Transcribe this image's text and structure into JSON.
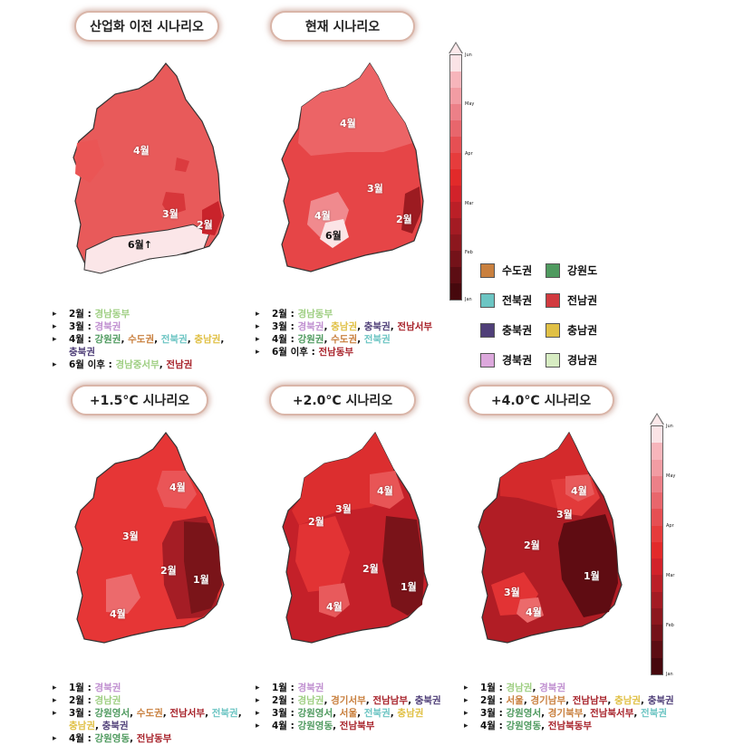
{
  "panels": [
    {
      "title": "산업화 이전 시나리오",
      "map_labels": [
        "4월",
        "3월",
        "2월",
        "6월↑"
      ],
      "bullets": [
        {
          "month": "2월 :",
          "regions": [
            {
              "name": "경남동부",
              "cls": "c-gyeongnam"
            }
          ]
        },
        {
          "month": "3월 :",
          "regions": [
            {
              "name": "경북권",
              "cls": "c-gyeongbuk"
            }
          ]
        },
        {
          "month": "4월 :",
          "regions": [
            {
              "name": "강원권",
              "cls": "c-gangwon"
            },
            {
              "name": "수도권",
              "cls": "c-sudo"
            },
            {
              "name": "전북권",
              "cls": "c-jeonbuk"
            },
            {
              "name": "충남권",
              "cls": "c-chungnam"
            },
            {
              "name": "충북권",
              "cls": "c-chungbuk"
            }
          ]
        },
        {
          "month": "6월 이후 :",
          "regions": [
            {
              "name": "경남중서부",
              "cls": "c-gyeongnam"
            },
            {
              "name": "전남권",
              "cls": "c-jeonnam"
            }
          ]
        }
      ]
    },
    {
      "title": "현재 시나리오",
      "map_labels": [
        "4월",
        "3월",
        "4월",
        "6월",
        "2월"
      ],
      "bullets": [
        {
          "month": "2월 :",
          "regions": [
            {
              "name": "경남동부",
              "cls": "c-gyeongnam"
            }
          ]
        },
        {
          "month": "3월 :",
          "regions": [
            {
              "name": "경북권",
              "cls": "c-gyeongbuk"
            },
            {
              "name": "충남권",
              "cls": "c-chungnam"
            },
            {
              "name": "충북권",
              "cls": "c-chungbuk"
            },
            {
              "name": "전남서부",
              "cls": "c-jeonnam"
            }
          ]
        },
        {
          "month": "4월 :",
          "regions": [
            {
              "name": "강원권",
              "cls": "c-gangwon"
            },
            {
              "name": "수도권",
              "cls": "c-sudo"
            },
            {
              "name": "전북권",
              "cls": "c-jeonbuk"
            }
          ]
        },
        {
          "month": "6월 이후 :",
          "regions": [
            {
              "name": "전남동부",
              "cls": "c-jeonnam"
            }
          ]
        }
      ]
    },
    {
      "title": "+1.5°C 시나리오",
      "map_labels": [
        "4월",
        "3월",
        "2월",
        "1월",
        "4월"
      ],
      "bullets": [
        {
          "month": "1월 :",
          "regions": [
            {
              "name": "경북권",
              "cls": "c-gyeongbuk"
            }
          ]
        },
        {
          "month": "2월 :",
          "regions": [
            {
              "name": "경남권",
              "cls": "c-gyeongnam"
            }
          ]
        },
        {
          "month": "3월 :",
          "regions": [
            {
              "name": "강원영서",
              "cls": "c-gangwon"
            },
            {
              "name": "수도권",
              "cls": "c-sudo"
            },
            {
              "name": "전남서부",
              "cls": "c-jeonnam"
            },
            {
              "name": "전북권",
              "cls": "c-jeonbuk"
            },
            {
              "name": "충남권",
              "cls": "c-chungnam"
            },
            {
              "name": "충북권",
              "cls": "c-chungbuk"
            }
          ]
        },
        {
          "month": "4월 :",
          "regions": [
            {
              "name": "강원영동",
              "cls": "c-gangwon"
            },
            {
              "name": "전남동부",
              "cls": "c-jeonnam"
            }
          ]
        }
      ]
    },
    {
      "title": "+2.0°C 시나리오",
      "map_labels": [
        "4월",
        "3월",
        "2월",
        "2월",
        "1월",
        "4월"
      ],
      "bullets": [
        {
          "month": "1월 :",
          "regions": [
            {
              "name": "경북권",
              "cls": "c-gyeongbuk"
            }
          ]
        },
        {
          "month": "2월 :",
          "regions": [
            {
              "name": "경남권",
              "cls": "c-gyeongnam"
            },
            {
              "name": "경기서부",
              "cls": "c-sudo"
            },
            {
              "name": "전남남부",
              "cls": "c-jeonnam"
            },
            {
              "name": "충북권",
              "cls": "c-chungbuk"
            }
          ]
        },
        {
          "month": "3월 :",
          "regions": [
            {
              "name": "강원영서",
              "cls": "c-gangwon"
            },
            {
              "name": "서울",
              "cls": "c-sudo"
            },
            {
              "name": "전북권",
              "cls": "c-jeonbuk"
            },
            {
              "name": "충남권",
              "cls": "c-chungnam"
            }
          ]
        },
        {
          "month": "4월 :",
          "regions": [
            {
              "name": "강원영동",
              "cls": "c-gangwon"
            },
            {
              "name": "전남북부",
              "cls": "c-jeonnam"
            }
          ]
        }
      ]
    },
    {
      "title": "+4.0°C 시나리오",
      "map_labels": [
        "4월",
        "3월",
        "2월",
        "1월",
        "3월",
        "4월"
      ],
      "bullets": [
        {
          "month": "1월 :",
          "regions": [
            {
              "name": "경남권",
              "cls": "c-gyeongnam"
            },
            {
              "name": "경북권",
              "cls": "c-gyeongbuk"
            }
          ]
        },
        {
          "month": "2월 :",
          "regions": [
            {
              "name": "서울",
              "cls": "c-sudo"
            },
            {
              "name": "경기남부",
              "cls": "c-sudo"
            },
            {
              "name": "전남남부",
              "cls": "c-jeonnam"
            },
            {
              "name": "충남권",
              "cls": "c-chungnam"
            },
            {
              "name": "충북권",
              "cls": "c-chungbuk"
            }
          ]
        },
        {
          "month": "3월 :",
          "regions": [
            {
              "name": "강원영서",
              "cls": "c-gangwon"
            },
            {
              "name": "경기북부",
              "cls": "c-sudo"
            },
            {
              "name": "전남북서부",
              "cls": "c-jeonnam"
            },
            {
              "name": "전북권",
              "cls": "c-jeonbuk"
            }
          ]
        },
        {
          "month": "4월 :",
          "regions": [
            {
              "name": "강원영동",
              "cls": "c-gangwon"
            },
            {
              "name": "전남북동부",
              "cls": "c-jeonnam"
            }
          ]
        }
      ]
    }
  ],
  "colorbar": {
    "ticks": [
      "Jun",
      "May",
      "Apr",
      "Mar",
      "Feb",
      "Jan"
    ],
    "colors": [
      "#fbe3e6",
      "#f7b5bb",
      "#f29ca3",
      "#ec8088",
      "#e8666c",
      "#e64f53",
      "#e63c3c",
      "#e22a2a",
      "#d2222a",
      "#bb1f27",
      "#a31b23",
      "#8c171e",
      "#741219",
      "#5c0d13",
      "#46080d"
    ]
  },
  "legend": {
    "items": [
      {
        "label": "수도권",
        "color": "#c9803f"
      },
      {
        "label": "강원도",
        "color": "#4f9a5f"
      },
      {
        "label": "전북권",
        "color": "#6cc5c3"
      },
      {
        "label": "전남권",
        "color": "#d13a3f"
      },
      {
        "label": "충북권",
        "color": "#4f3f78"
      },
      {
        "label": "충남권",
        "color": "#e0c045"
      },
      {
        "label": "경북권",
        "color": "#dca8dc"
      },
      {
        "label": "경남권",
        "color": "#d7ecc2"
      }
    ]
  }
}
